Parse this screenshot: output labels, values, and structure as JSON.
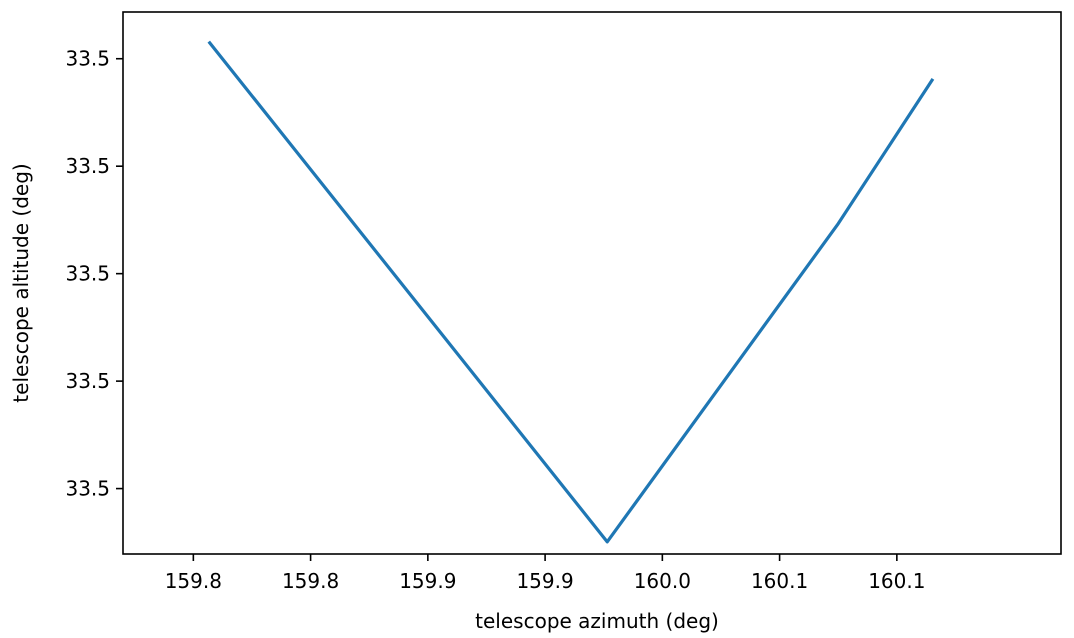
{
  "chart_data": {
    "type": "line",
    "title": "",
    "xlabel": "telescope azimuth (deg)",
    "ylabel": "telescope altitude (deg)",
    "grid": false,
    "legend": "none",
    "xlim": [
      159.77,
      160.17
    ],
    "ylim": [
      33.4986,
      33.5102
    ],
    "xticks": [
      {
        "value": 159.8,
        "label": "159.8"
      },
      {
        "value": 159.85,
        "label": "159.8"
      },
      {
        "value": 159.9,
        "label": "159.9"
      },
      {
        "value": 159.95,
        "label": "159.9"
      },
      {
        "value": 160.0,
        "label": "160.0"
      },
      {
        "value": 160.05,
        "label": "160.1"
      },
      {
        "value": 160.1,
        "label": "160.1"
      }
    ],
    "yticks": [
      {
        "value": 33.5,
        "label": "33.5"
      },
      {
        "value": 33.5023,
        "label": "33.5"
      },
      {
        "value": 33.5046,
        "label": "33.5"
      },
      {
        "value": 33.5069,
        "label": "33.5"
      },
      {
        "value": 33.5092,
        "label": "33.5"
      }
    ],
    "series": [
      {
        "color": "#1f77b4",
        "x": [
          159.807,
          159.9765,
          160.075,
          160.115
        ],
        "y": [
          33.50954,
          33.49886,
          33.50567,
          33.50874
        ]
      }
    ]
  }
}
